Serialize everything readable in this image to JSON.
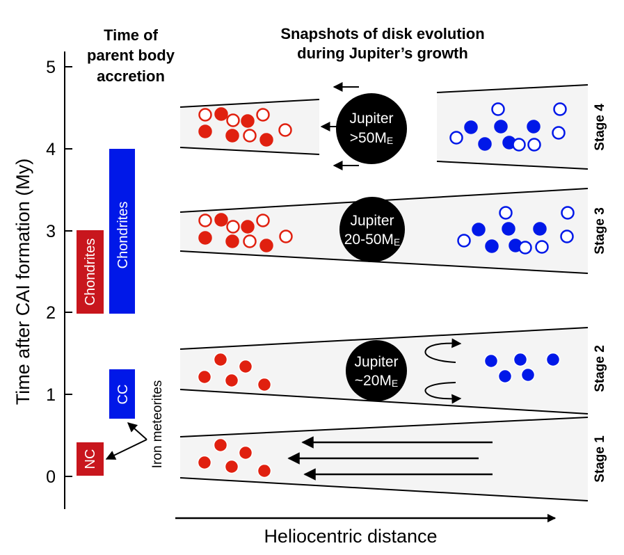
{
  "headers": {
    "time_line1": "Time of",
    "time_line2": "parent body",
    "time_line3": "accretion",
    "snap_line1": "Snapshots of disk evolution",
    "snap_line2": "during Jupiter’s growth"
  },
  "axis": {
    "y_title": "Time after CAI formation (My)",
    "x_title": "Heliocentric distance",
    "ticks": [
      "0",
      "1",
      "2",
      "3",
      "4",
      "5"
    ]
  },
  "bars": {
    "nc": "NC",
    "cc": "CC",
    "chondrites_red": "Chondrites",
    "chondrites_blue": "Chondrites",
    "iron": "Iron meteorites"
  },
  "stages": {
    "s1": "Stage 1",
    "s2": "Stage 2",
    "s3": "Stage 3",
    "s4": "Stage 4"
  },
  "jupiter": {
    "s2_name": "Jupiter",
    "s2_mass": "~20M",
    "s3_name": "Jupiter",
    "s3_mass": "20-50M",
    "s4_name": "Jupiter",
    "s4_mass": ">50M",
    "subscript": "E"
  },
  "colors": {
    "red": "#e0200f",
    "dark_red": "#c8161d",
    "blue": "#0018e8",
    "disk_fill": "#f4f4f4",
    "black": "#000000"
  }
}
